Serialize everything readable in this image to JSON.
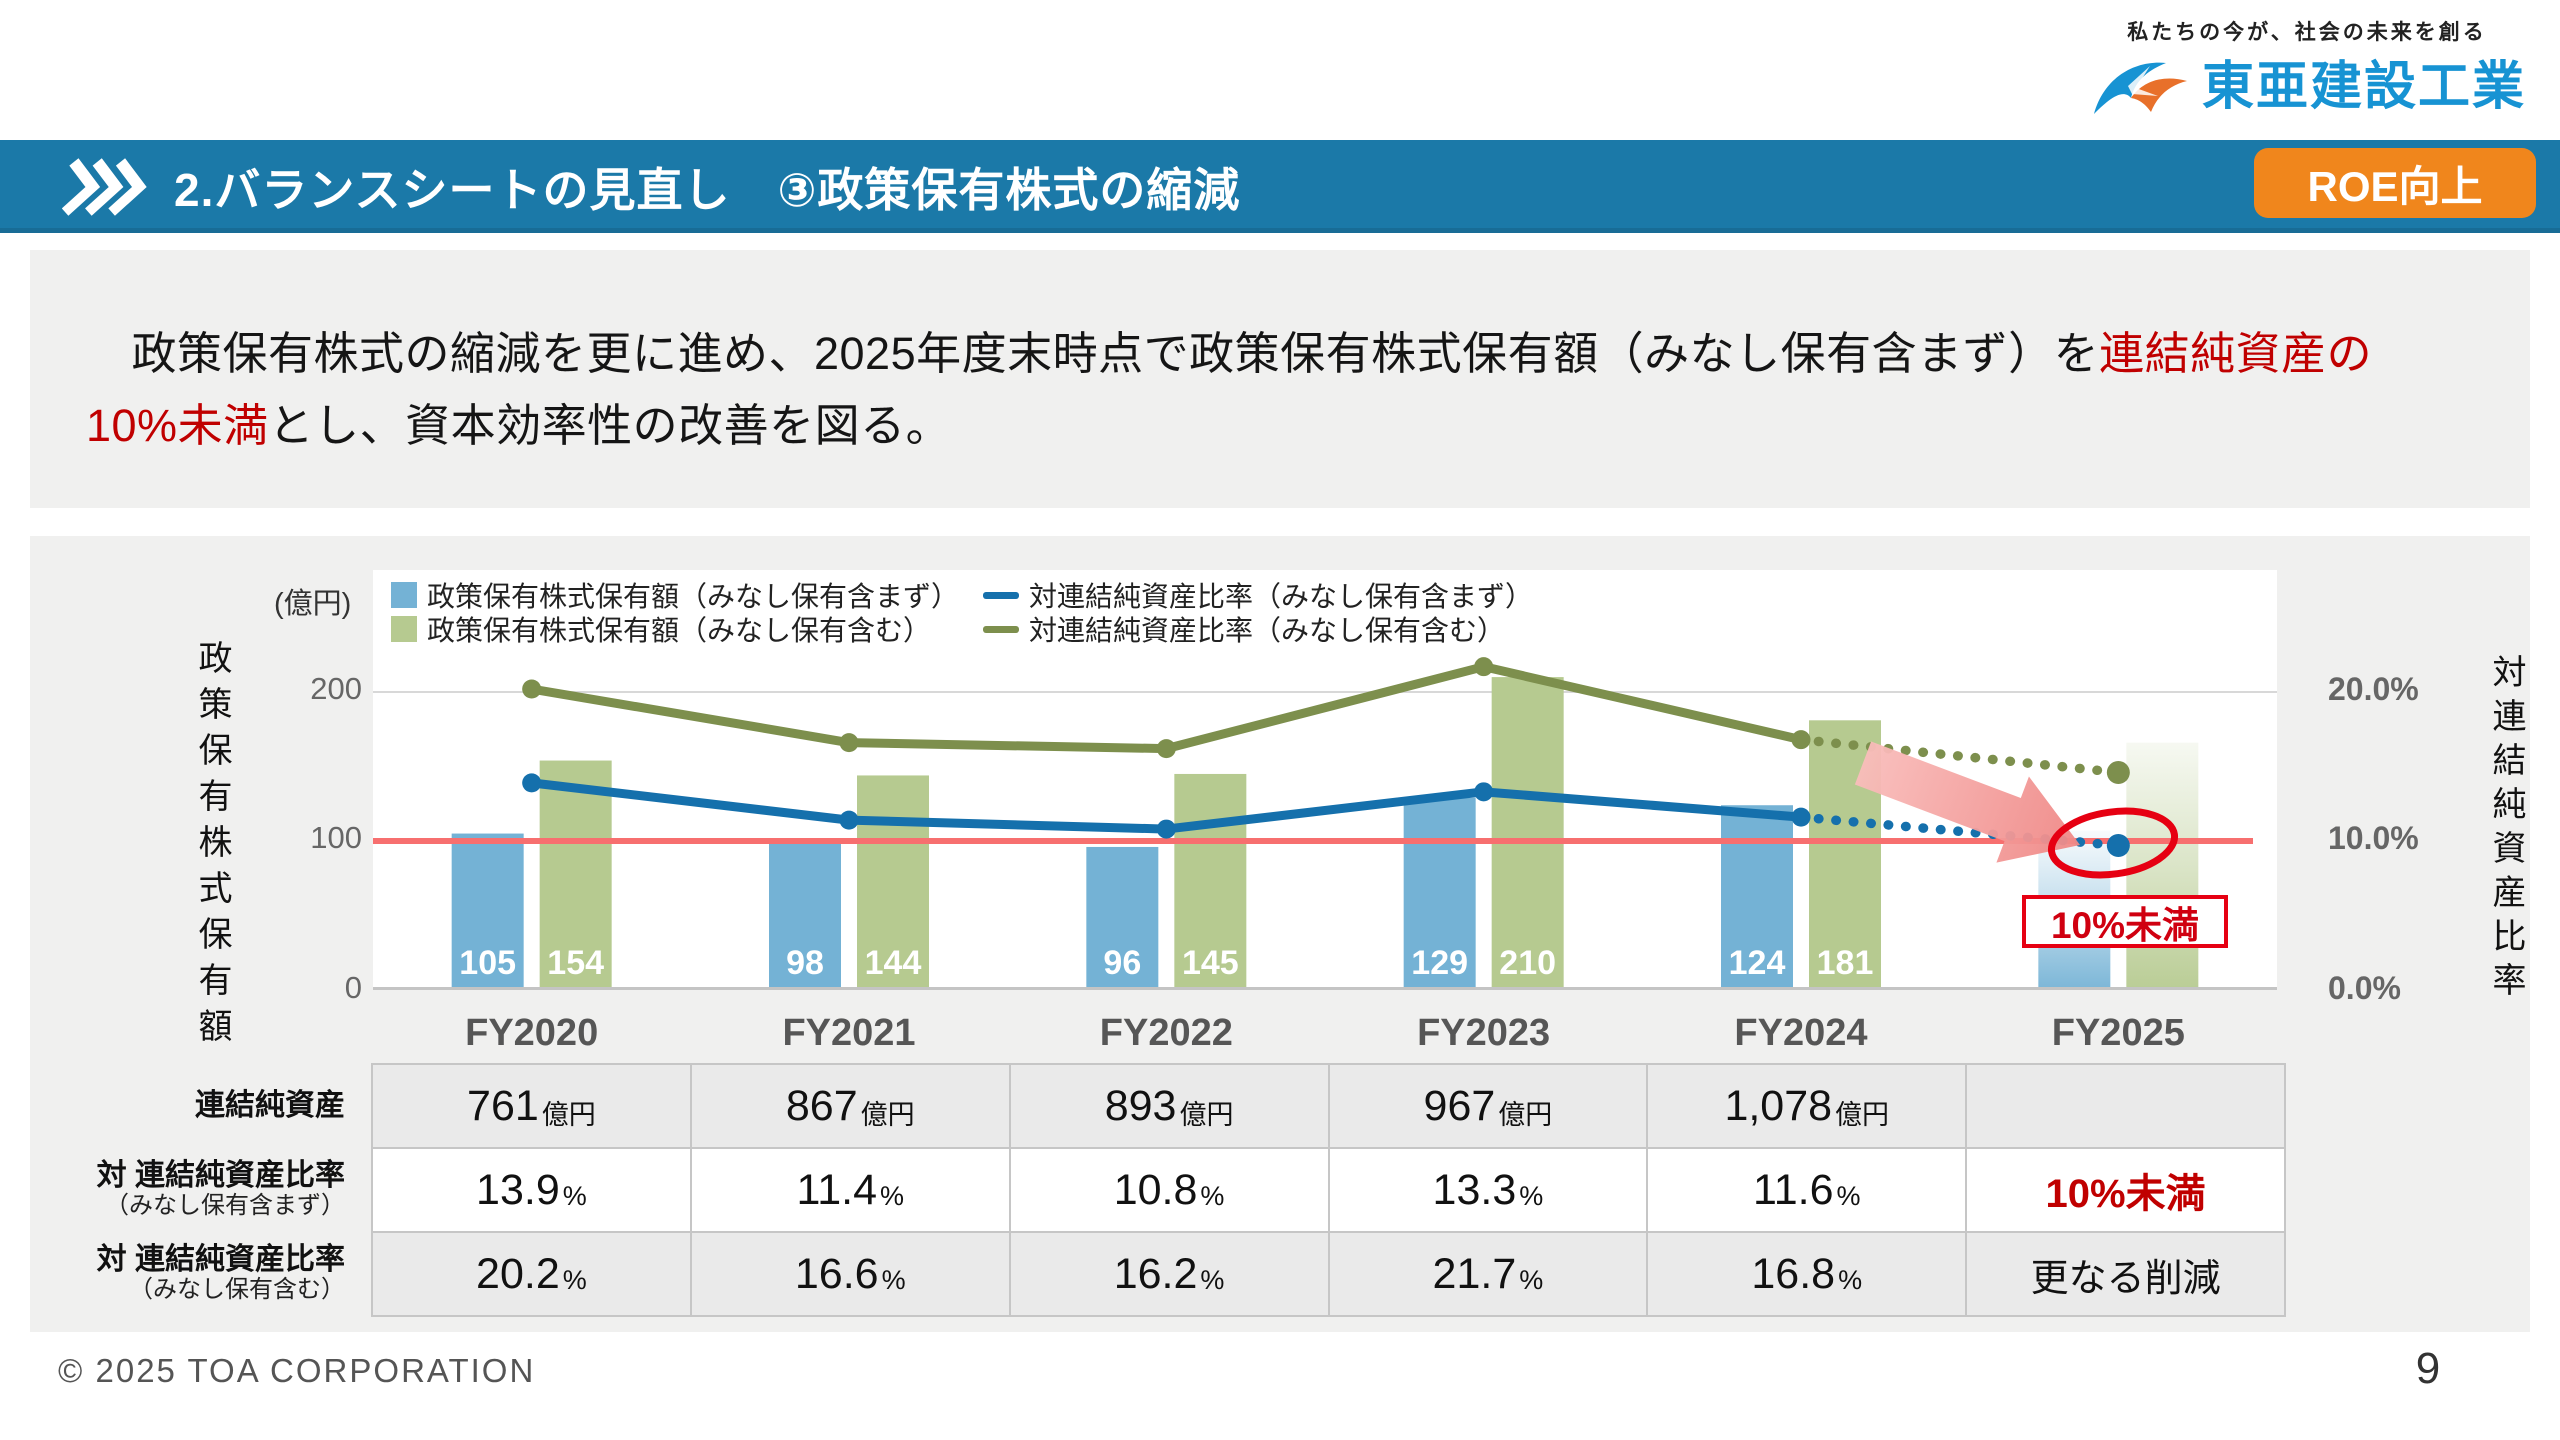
{
  "header": {
    "tagline": "私たちの今が、社会の未来を創る",
    "company": "東亜建設工業"
  },
  "title_bar": {
    "title": "2.バランスシートの見直し　③政策保有株式の縮減",
    "badge": "ROE向上"
  },
  "lead": {
    "segments": [
      {
        "text": "　政策保有株式の縮減を更に進め、2025年度末時点で政策保有株式保有額（みなし保有含まず）を"
      },
      {
        "text": "連結純資産の",
        "red": true
      },
      {
        "br": true
      },
      {
        "text": "10%未満",
        "red": true
      },
      {
        "text": "とし、資本効率性の改善を図る。"
      }
    ]
  },
  "chart_data": {
    "type": "bar+line",
    "categories": [
      "FY2020",
      "FY2021",
      "FY2022",
      "FY2023",
      "FY2024",
      "FY2025"
    ],
    "unit_label": "(億円)",
    "left_axis": {
      "title": "政策保有株式保有額",
      "ticks": [
        "200",
        "100",
        "0"
      ],
      "tick_values": [
        200,
        100,
        0
      ],
      "range": [
        0,
        281
      ]
    },
    "right_axis": {
      "title": "対連結純資産比率",
      "ticks": [
        "20.0%",
        "10.0%",
        "0.0%"
      ],
      "tick_values": [
        20,
        10,
        0
      ],
      "range": [
        0,
        28.1
      ]
    },
    "bar_series": [
      {
        "name": "政策保有株式保有額（みなし保有含まず）",
        "color": "#74b2d5",
        "values": [
          105,
          98,
          96,
          129,
          124,
          null
        ],
        "projected": 107
      },
      {
        "name": "政策保有株式保有額（みなし保有含む）",
        "color": "#b6ca90",
        "values": [
          154,
          144,
          145,
          210,
          181,
          null
        ],
        "projected": 166
      }
    ],
    "line_series": [
      {
        "name": "対連結純資産比率（みなし保有含まず）",
        "color": "#1570ac",
        "values": [
          13.9,
          11.4,
          10.8,
          13.3,
          11.6,
          null
        ],
        "projected": 9.7
      },
      {
        "name": "対連結純資産比率（みなし保有含む）",
        "color": "#7d8f4d",
        "values": [
          20.2,
          16.6,
          16.2,
          21.7,
          16.8,
          null
        ],
        "projected": 14.6
      }
    ],
    "threshold": {
      "value": 10,
      "color": "#f76f6f"
    },
    "annotation": {
      "label": "10%未満"
    },
    "grid": "horizontal",
    "legend_position": "top"
  },
  "table": {
    "row_headers": [
      {
        "main": "連結純資産",
        "sub": ""
      },
      {
        "main": "対 連結純資産比率",
        "sub": "（みなし保有含まず）"
      },
      {
        "main": "対 連結純資産比率",
        "sub": "（みなし保有含む）"
      }
    ],
    "rows": [
      {
        "cells": [
          [
            "761",
            "億円"
          ],
          [
            "867",
            "億円"
          ],
          [
            "893",
            "億円"
          ],
          [
            "967",
            "億円"
          ],
          [
            "1,078",
            "億円"
          ],
          null
        ]
      },
      {
        "cells": [
          [
            "13.9",
            "%"
          ],
          [
            "11.4",
            "%"
          ],
          [
            "10.8",
            "%"
          ],
          [
            "13.3",
            "%"
          ],
          [
            "11.6",
            "%"
          ],
          {
            "text": "10%未満",
            "style": "red"
          }
        ]
      },
      {
        "cells": [
          [
            "20.2",
            "%"
          ],
          [
            "16.6",
            "%"
          ],
          [
            "16.2",
            "%"
          ],
          [
            "21.7",
            "%"
          ],
          [
            "16.8",
            "%"
          ],
          {
            "text": "更なる削減",
            "style": "plain"
          }
        ]
      }
    ]
  },
  "footer": {
    "copyright": "© 2025 TOA CORPORATION",
    "page": "9"
  }
}
